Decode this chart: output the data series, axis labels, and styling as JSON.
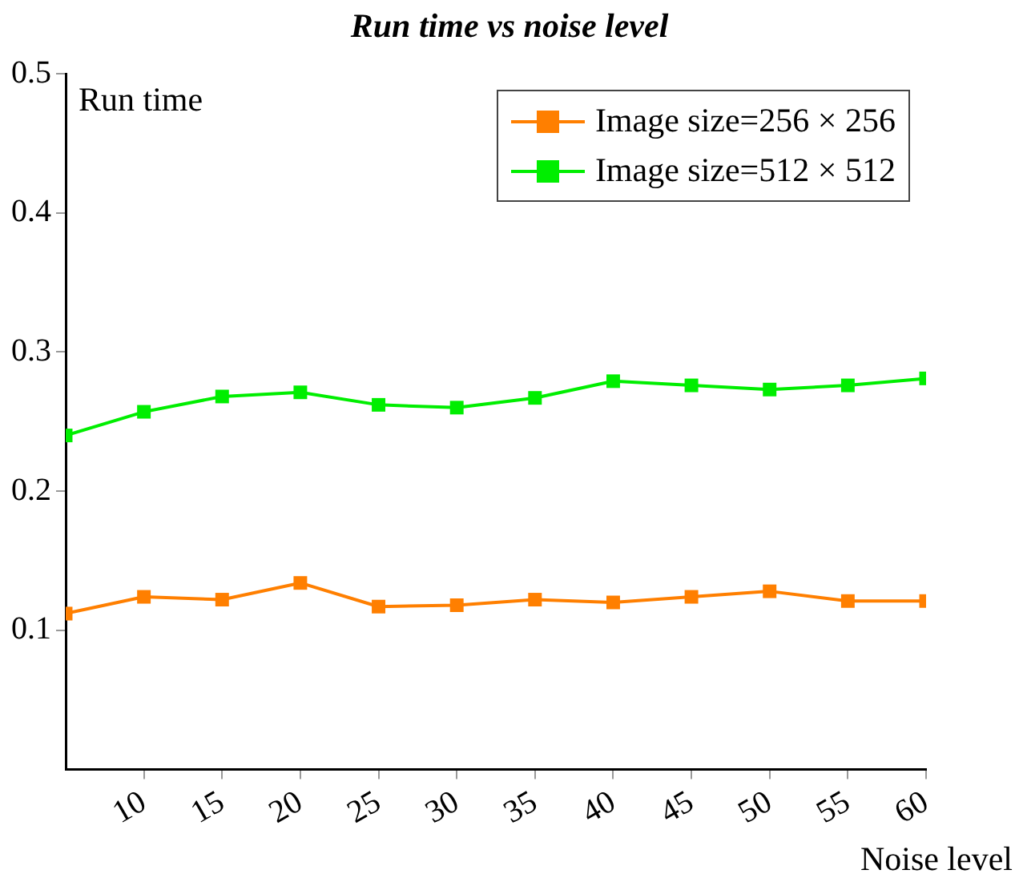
{
  "chart_data": {
    "type": "line",
    "title": "Run time vs noise level",
    "xlabel": "Noise level",
    "ylabel": "Run time",
    "x": [
      5,
      10,
      15,
      20,
      25,
      30,
      35,
      40,
      45,
      50,
      55,
      60
    ],
    "series": [
      {
        "name": "Image size=256 × 256",
        "color": "#ff7f00",
        "values": [
          0.112,
          0.124,
          0.122,
          0.134,
          0.117,
          0.118,
          0.122,
          0.12,
          0.124,
          0.128,
          0.121,
          0.121
        ]
      },
      {
        "name": "Image size=512 × 512",
        "color": "#00ee00",
        "values": [
          0.24,
          0.257,
          0.268,
          0.271,
          0.262,
          0.26,
          0.267,
          0.279,
          0.276,
          0.273,
          0.276,
          0.281
        ]
      }
    ],
    "xlim": [
      5,
      60
    ],
    "xticks": [
      10,
      15,
      20,
      25,
      30,
      35,
      40,
      45,
      50,
      55,
      60
    ],
    "ylim": [
      0,
      0.5
    ],
    "yticks": [
      0.1,
      0.2,
      0.3,
      0.4,
      0.5
    ],
    "grid": false,
    "legend": "top right",
    "marker": "square",
    "line_style": "solid"
  }
}
